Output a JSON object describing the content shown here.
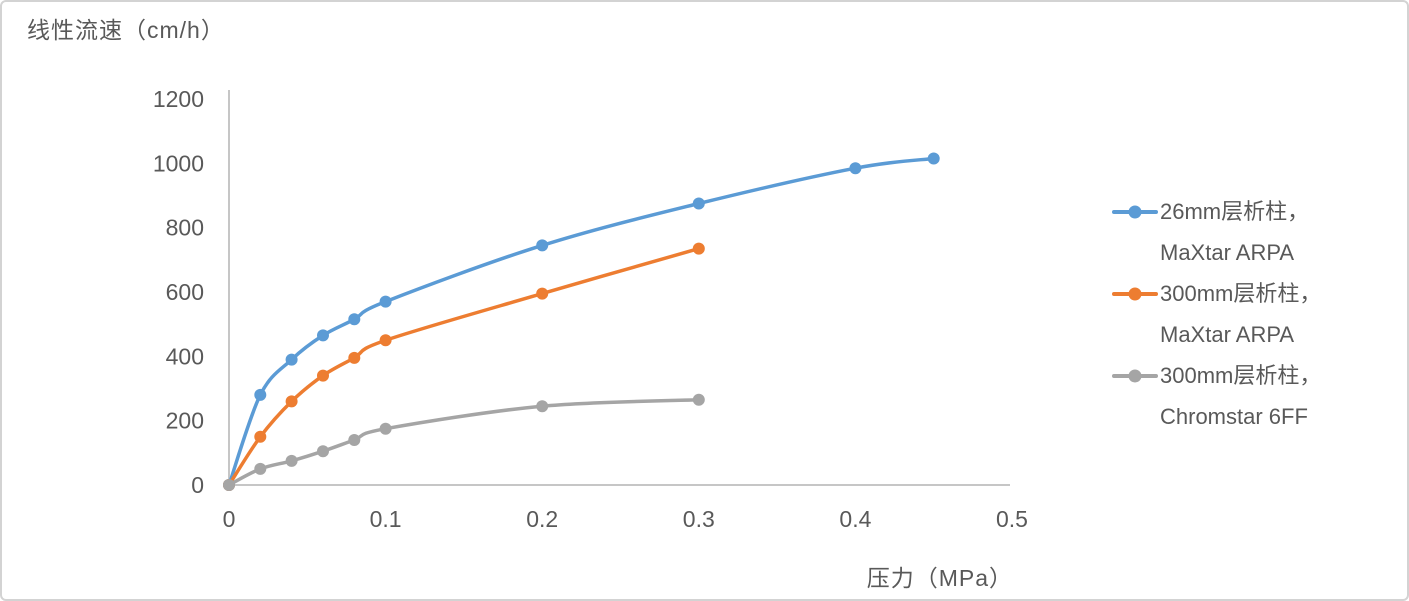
{
  "chart_data": {
    "type": "line",
    "title": "线性流速（cm/h）",
    "xlabel": "压力（MPa）",
    "ylabel": "线性流速（cm/h）",
    "xlim": [
      0,
      0.5
    ],
    "ylim": [
      0,
      1200
    ],
    "x_ticks": [
      0,
      0.1,
      0.2,
      0.3,
      0.4,
      0.5
    ],
    "x_tick_labels": [
      "0",
      "0.1",
      "0.2",
      "0.3",
      "0.4",
      "0.5"
    ],
    "y_ticks": [
      0,
      200,
      400,
      600,
      800,
      1000,
      1200
    ],
    "y_tick_labels": [
      "0",
      "200",
      "400",
      "600",
      "800",
      "1000",
      "1200"
    ],
    "grid": false,
    "legend_position": "right",
    "axis_color": "#c6c6c6",
    "text_color": "#595959",
    "series": [
      {
        "name": "26mm层析柱，MaXtar ARPA",
        "color": "#5B9BD5",
        "x": [
          0,
          0.02,
          0.04,
          0.06,
          0.08,
          0.1,
          0.2,
          0.3,
          0.4,
          0.45
        ],
        "y": [
          0,
          280,
          390,
          465,
          515,
          570,
          745,
          875,
          985,
          1015
        ]
      },
      {
        "name": "300mm层析柱，MaXtar ARPA",
        "color": "#ED7D31",
        "x": [
          0,
          0.02,
          0.04,
          0.06,
          0.08,
          0.1,
          0.2,
          0.3
        ],
        "y": [
          0,
          150,
          260,
          340,
          395,
          450,
          595,
          735
        ]
      },
      {
        "name": "300mm层析柱，Chromstar 6FF",
        "color": "#A5A5A5",
        "x": [
          0,
          0.02,
          0.04,
          0.06,
          0.08,
          0.1,
          0.2,
          0.3
        ],
        "y": [
          0,
          50,
          75,
          105,
          140,
          175,
          245,
          265
        ]
      }
    ]
  },
  "legend": {
    "entries": [
      {
        "line1": "26mm层析柱，",
        "line2": "MaXtar ARPA"
      },
      {
        "line1": "300mm层析柱，",
        "line2": "MaXtar ARPA"
      },
      {
        "line1": "300mm层析柱，",
        "line2": "Chromstar 6FF"
      }
    ]
  }
}
